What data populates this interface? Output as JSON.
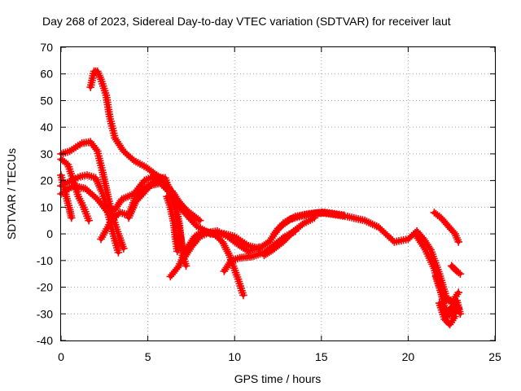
{
  "chart_data": {
    "type": "scatter",
    "title": "Day 268 of 2023, Sidereal Day-to-day VTEC variation (SDTVAR) for receiver laut",
    "xlabel": "GPS time / hours",
    "ylabel": "SDTVAR / TECUs",
    "xlim": [
      0,
      25
    ],
    "ylim": [
      -40,
      70
    ],
    "xticks": [
      "0",
      "5",
      "10",
      "15",
      "20",
      "25"
    ],
    "yticks": [
      "-40",
      "-30",
      "-20",
      "-10",
      "0",
      "10",
      "20",
      "30",
      "40",
      "50",
      "60",
      "70"
    ],
    "grid": true,
    "color": "#ff0000",
    "series": [
      {
        "name": "trace-1",
        "points": [
          [
            1.7,
            55
          ],
          [
            1.9,
            61
          ],
          [
            2.1,
            61
          ],
          [
            2.3,
            58
          ],
          [
            2.6,
            52
          ],
          [
            2.8,
            44
          ],
          [
            3.1,
            36
          ],
          [
            3.6,
            31
          ],
          [
            4.2,
            27.5
          ],
          [
            4.9,
            25
          ],
          [
            5.5,
            22
          ],
          [
            6.0,
            18
          ],
          [
            6.5,
            13
          ],
          [
            7.1,
            8
          ],
          [
            7.8,
            3
          ],
          [
            8.6,
            0
          ],
          [
            9.4,
            0
          ],
          [
            10.0,
            -1
          ],
          [
            10.8,
            -4.5
          ],
          [
            11.4,
            -5.5
          ],
          [
            12.0,
            -3
          ],
          [
            12.5,
            2
          ],
          [
            13.2,
            5.5
          ],
          [
            14.0,
            7
          ],
          [
            15.0,
            8
          ],
          [
            16.5,
            6.5
          ],
          [
            17.5,
            5
          ],
          [
            18.3,
            2.5
          ],
          [
            19.2,
            -3
          ],
          [
            20.0,
            -2
          ],
          [
            20.5,
            1
          ],
          [
            20.9,
            -2
          ],
          [
            21.3,
            -6
          ],
          [
            21.8,
            -15
          ],
          [
            22.2,
            -24
          ],
          [
            22.8,
            -27
          ]
        ]
      },
      {
        "name": "trace-2",
        "points": [
          [
            0,
            30
          ],
          [
            0.5,
            31
          ],
          [
            1.2,
            34
          ],
          [
            1.7,
            34.5
          ],
          [
            2.1,
            31
          ],
          [
            2.4,
            23
          ],
          [
            2.7,
            14
          ],
          [
            3.0,
            6
          ],
          [
            3.3,
            0
          ],
          [
            3.6,
            -5.5
          ]
        ]
      },
      {
        "name": "trace-3",
        "points": [
          [
            0,
            28
          ],
          [
            0.4,
            26
          ],
          [
            0.7,
            20
          ],
          [
            1.0,
            14
          ],
          [
            1.3,
            10
          ],
          [
            1.6,
            5
          ]
        ]
      },
      {
        "name": "trace-4",
        "points": [
          [
            0,
            22
          ],
          [
            0.3,
            14
          ],
          [
            0.5,
            9
          ],
          [
            0.6,
            6
          ]
        ]
      },
      {
        "name": "trace-5",
        "points": [
          [
            0,
            18
          ],
          [
            0.6,
            20
          ],
          [
            1.1,
            21.5
          ],
          [
            1.5,
            22
          ],
          [
            2.0,
            21
          ],
          [
            2.4,
            15
          ],
          [
            2.7,
            8
          ],
          [
            3.0,
            0
          ],
          [
            3.3,
            -7
          ]
        ]
      },
      {
        "name": "trace-6",
        "points": [
          [
            0,
            15
          ],
          [
            0.7,
            18
          ],
          [
            1.4,
            17
          ],
          [
            2.1,
            13
          ],
          [
            2.7,
            8
          ],
          [
            3.1,
            9
          ],
          [
            3.5,
            13
          ],
          [
            4.2,
            15
          ],
          [
            4.8,
            20
          ],
          [
            5.5,
            22
          ],
          [
            6.0,
            20
          ],
          [
            6.5,
            14
          ],
          [
            6.8,
            4
          ],
          [
            7.0,
            -8
          ],
          [
            7.2,
            -12
          ]
        ]
      },
      {
        "name": "trace-7",
        "points": [
          [
            2.3,
            -2
          ],
          [
            2.9,
            5
          ],
          [
            3.4,
            8
          ],
          [
            3.9,
            7
          ],
          [
            4.3,
            14
          ],
          [
            5.0,
            18
          ],
          [
            5.7,
            19
          ],
          [
            6.2,
            16
          ],
          [
            6.8,
            12
          ],
          [
            7.4,
            7
          ]
        ]
      },
      {
        "name": "trace-8",
        "points": [
          [
            3.9,
            6
          ],
          [
            4.3,
            12
          ],
          [
            5.0,
            17
          ],
          [
            5.5,
            21
          ],
          [
            6.0,
            21
          ],
          [
            6.3,
            15
          ],
          [
            6.6,
            9
          ],
          [
            6.8,
            2
          ],
          [
            7.0,
            -6
          ]
        ]
      },
      {
        "name": "trace-9",
        "points": [
          [
            6.4,
            16
          ],
          [
            6.8,
            12
          ],
          [
            7.2,
            9
          ],
          [
            7.6,
            7
          ],
          [
            8.0,
            5
          ]
        ]
      },
      {
        "name": "trace-10",
        "points": [
          [
            6.1,
            14
          ],
          [
            6.3,
            10
          ],
          [
            6.5,
            4
          ],
          [
            6.6,
            -2
          ],
          [
            6.7,
            -6.5
          ]
        ]
      },
      {
        "name": "trace-11",
        "points": [
          [
            6.3,
            -16
          ],
          [
            6.8,
            -12
          ],
          [
            7.2,
            -6
          ],
          [
            7.7,
            -1
          ],
          [
            8.2,
            1
          ],
          [
            8.8,
            0
          ],
          [
            9.3,
            -3
          ],
          [
            9.7,
            -8
          ],
          [
            10.2,
            -17
          ],
          [
            10.5,
            -23
          ]
        ]
      },
      {
        "name": "trace-12",
        "points": [
          [
            7.0,
            -10
          ],
          [
            7.5,
            -5
          ],
          [
            8.0,
            -1
          ],
          [
            8.5,
            0.5
          ],
          [
            9.0,
            1
          ],
          [
            9.6,
            -1
          ],
          [
            10.2,
            -4
          ],
          [
            10.8,
            -6.5
          ],
          [
            11.4,
            -5
          ]
        ]
      },
      {
        "name": "trace-13",
        "points": [
          [
            9.4,
            -14
          ],
          [
            9.8,
            -10
          ],
          [
            10.3,
            -9
          ],
          [
            11.0,
            -8.5
          ],
          [
            11.7,
            -7
          ],
          [
            12.3,
            -4
          ],
          [
            12.9,
            -1
          ],
          [
            13.5,
            1
          ]
        ]
      },
      {
        "name": "trace-14",
        "points": [
          [
            11.7,
            -8
          ],
          [
            12.2,
            -6
          ],
          [
            12.8,
            -3
          ],
          [
            13.4,
            1
          ],
          [
            14.0,
            4
          ],
          [
            14.6,
            6
          ]
        ]
      },
      {
        "name": "trace-15",
        "points": [
          [
            12.3,
            0
          ],
          [
            12.8,
            4
          ],
          [
            13.5,
            6.5
          ],
          [
            14.3,
            7.5
          ],
          [
            15.2,
            8
          ],
          [
            16.3,
            7
          ]
        ]
      },
      {
        "name": "trace-16",
        "points": [
          [
            20.5,
            -1
          ],
          [
            21.0,
            -6
          ],
          [
            21.5,
            -13
          ],
          [
            21.9,
            -22
          ],
          [
            22.2,
            -31
          ],
          [
            22.6,
            -30
          ],
          [
            22.9,
            -28
          ]
        ]
      },
      {
        "name": "trace-17",
        "points": [
          [
            21.6,
            -16
          ],
          [
            21.9,
            -22
          ],
          [
            22.2,
            -25
          ],
          [
            22.6,
            -25
          ],
          [
            22.9,
            -22
          ]
        ]
      },
      {
        "name": "trace-18",
        "points": [
          [
            21.5,
            8
          ],
          [
            21.9,
            6
          ],
          [
            22.3,
            3
          ],
          [
            22.7,
            0
          ],
          [
            22.9,
            -3
          ]
        ]
      },
      {
        "name": "trace-19",
        "points": [
          [
            21.9,
            -27
          ],
          [
            22.3,
            -29
          ],
          [
            22.6,
            -27
          ],
          [
            22.8,
            -25
          ],
          [
            23.0,
            -30
          ]
        ]
      },
      {
        "name": "trace-20",
        "points": [
          [
            22.5,
            -12
          ],
          [
            22.8,
            -14
          ],
          [
            23.0,
            -15
          ]
        ]
      },
      {
        "name": "trace-21",
        "points": [
          [
            21.8,
            -26
          ],
          [
            22.1,
            -32
          ],
          [
            22.4,
            -34
          ],
          [
            22.7,
            -31
          ]
        ]
      }
    ]
  }
}
